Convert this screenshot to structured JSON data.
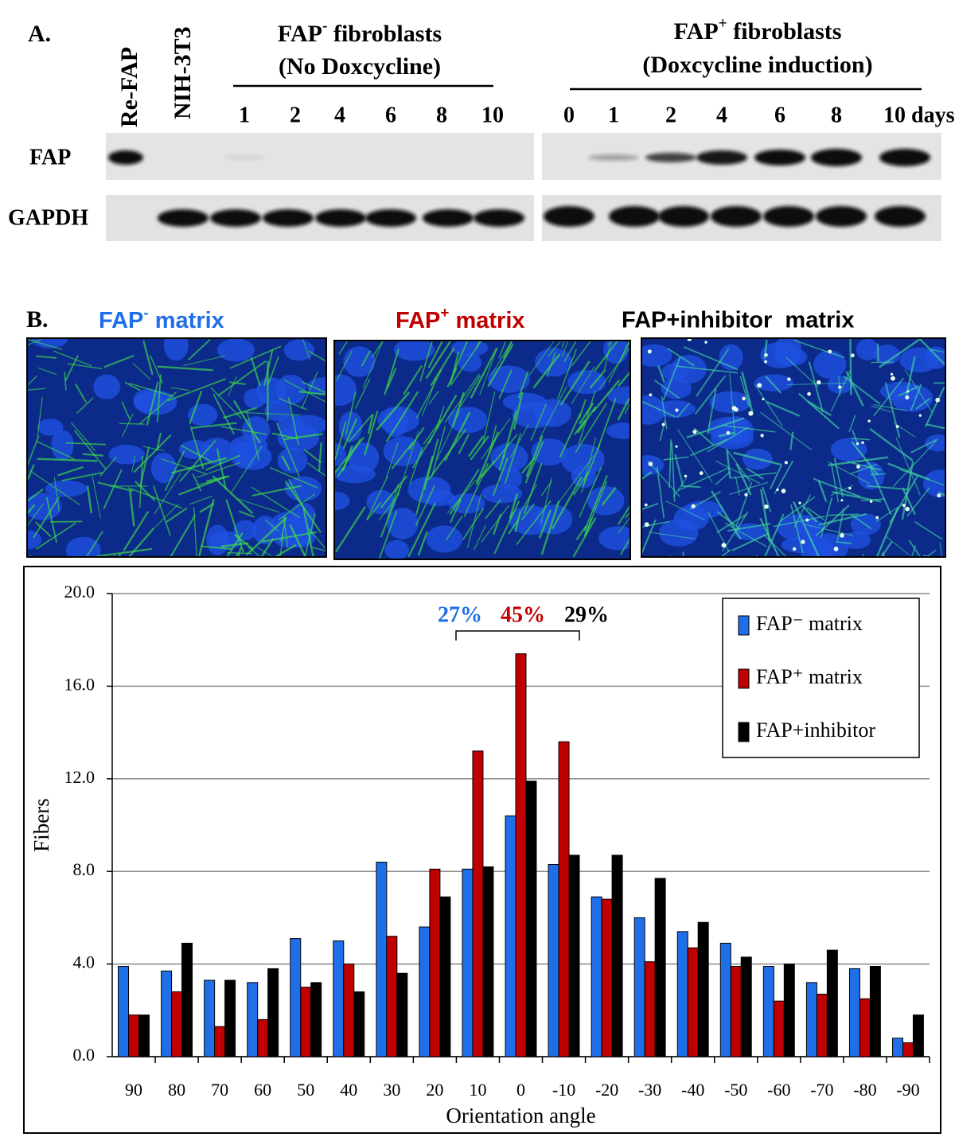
{
  "panel_a": {
    "label": "A.",
    "reference_lanes": [
      "Re-FAP",
      "NIH-3T3"
    ],
    "groups": [
      {
        "title": "FAP",
        "title_sup": "-",
        "title_end": " fibroblasts",
        "subtitle": "(No Doxcycline)",
        "lanes": [
          "1",
          "2",
          "4",
          "6",
          "8",
          "10"
        ]
      },
      {
        "title": "FAP",
        "title_sup": "+",
        "title_end": " fibroblasts",
        "subtitle": "(Doxcycline induction)",
        "lanes": [
          "0",
          "1",
          "2",
          "4",
          "6",
          "8",
          "10 days"
        ]
      }
    ],
    "rows": [
      "FAP",
      "GAPDH"
    ]
  },
  "panel_b": {
    "label": "B.",
    "images": [
      {
        "title": "FAP",
        "title_sup": "-",
        "title_end": " matrix",
        "color": "#1f6fe8"
      },
      {
        "title": "FAP",
        "title_sup": "+",
        "title_end": " matrix",
        "color": "#c00000"
      },
      {
        "title": "FAP+inhibitor  matrix",
        "color": "#000000"
      }
    ]
  },
  "chart_data": {
    "type": "bar",
    "x_label": "Orientation angle",
    "y_label": "Fibers",
    "categories": [
      "90",
      "80",
      "70",
      "60",
      "50",
      "40",
      "30",
      "20",
      "10",
      "0",
      "-10",
      "-20",
      "-30",
      "-40",
      "-50",
      "-60",
      "-70",
      "-80",
      "-90"
    ],
    "series": [
      {
        "name": "FAP⁻ matrix",
        "color": "#1f6fe8",
        "values": [
          3.9,
          3.7,
          3.3,
          3.2,
          5.1,
          5.0,
          8.4,
          5.6,
          8.1,
          10.4,
          8.3,
          6.9,
          6.0,
          5.4,
          4.9,
          3.9,
          3.2,
          3.8,
          0.8
        ]
      },
      {
        "name": "FAP⁺ matrix",
        "color": "#c00000",
        "values": [
          1.8,
          2.8,
          1.3,
          1.6,
          3.0,
          4.0,
          5.2,
          8.1,
          13.2,
          17.4,
          13.6,
          6.8,
          4.1,
          4.7,
          3.9,
          2.4,
          2.7,
          2.5,
          0.6
        ]
      },
      {
        "name": "FAP+inhibitor",
        "color": "#000000",
        "values": [
          1.8,
          4.9,
          3.3,
          3.8,
          3.2,
          2.8,
          3.6,
          6.9,
          8.2,
          11.9,
          8.7,
          8.7,
          7.7,
          5.8,
          4.3,
          4.0,
          4.6,
          3.9,
          1.8
        ]
      }
    ],
    "ylim": [
      0,
      20
    ],
    "yticks": [
      {
        "value": 0,
        "label": "0.0"
      },
      {
        "value": 4,
        "label": "4.0"
      },
      {
        "value": 8,
        "label": "8.0"
      },
      {
        "value": 12,
        "label": "12.0"
      },
      {
        "value": 16,
        "label": "16.0"
      },
      {
        "value": 20,
        "label": "20.0"
      }
    ],
    "grid": true,
    "legend": "upper right",
    "annotations": [
      {
        "text": "27%",
        "color": "#1f6fe8"
      },
      {
        "text": "45%",
        "color": "#c00000"
      },
      {
        "text": "29%",
        "color": "#000000"
      }
    ]
  }
}
